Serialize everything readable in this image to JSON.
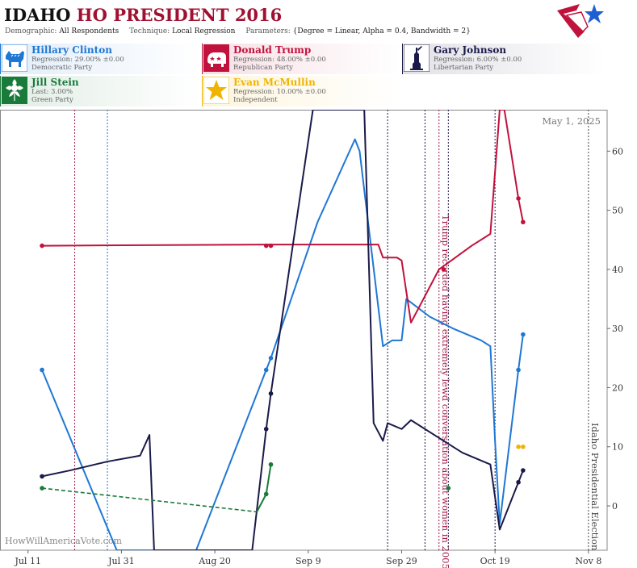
{
  "header": {
    "state": "IDAHO",
    "title_rest": "HO PRESIDENT 2016",
    "demographic_label": "Demographic:",
    "demographic_value": "All Respondents",
    "technique_label": "Technique:",
    "technique_value": "Local Regression",
    "parameters_label": "Parameters:",
    "parameters_value": "{Degree = Linear, Alpha = 0.4, Bandwidth = 2}"
  },
  "candidates": [
    {
      "name": "Hillary Clinton",
      "line2": "Regression: 29.00% ±0.00",
      "line3": "Democratic Party",
      "color": "#1f77d4",
      "icon": "donkey-icon"
    },
    {
      "name": "Donald Trump",
      "line2": "Regression: 48.00% ±0.00",
      "line3": "Republican Party",
      "color": "#c0123c",
      "icon": "elephant-icon"
    },
    {
      "name": "Gary Johnson",
      "line2": "Regression: 6.00% ±0.00",
      "line3": "Libertarian Party",
      "color": "#1a1a4a",
      "icon": "statue-of-liberty-icon"
    },
    {
      "name": "Jill Stein",
      "line2": "Last: 3.00%",
      "line3": "Green Party",
      "color": "#1a7a3a",
      "icon": "green-flower-icon"
    },
    {
      "name": "Evan McMullin",
      "line2": "Regression: 10.00% ±0.00",
      "line3": "Independent",
      "color": "#f0b400",
      "icon": "star-icon"
    }
  ],
  "chart_data": {
    "type": "line",
    "date_label": "May 1, 2025",
    "watermark": "HowWillAmericaVote.com",
    "x_ticks": [
      "Jul 11",
      "Jul 31",
      "Aug 20",
      "Sep 9",
      "Sep 29",
      "Oct 19",
      "Nov 8"
    ],
    "x_tick_dates": [
      "2016-07-11",
      "2016-07-31",
      "2016-08-20",
      "2016-09-09",
      "2016-09-29",
      "2016-10-19",
      "2016-11-08"
    ],
    "xlim": [
      "2016-07-05",
      "2016-11-12"
    ],
    "y_ticks": [
      0,
      10,
      20,
      30,
      40,
      50,
      60
    ],
    "ylim": [
      -7.5,
      67
    ],
    "annotations": [
      {
        "date": "2016-10-07",
        "text": "Trump recorded having extremely lewd conversation about women in 2005",
        "color": "#a01848"
      },
      {
        "date": "2016-11-08",
        "text": "Idaho Presidential Election",
        "color": "#444444"
      }
    ],
    "event_lines": [
      {
        "date": "2016-07-21",
        "color": "#a01848"
      },
      {
        "date": "2016-07-28",
        "color": "#1f77d4"
      },
      {
        "date": "2016-09-26",
        "color": "#1a1a4a"
      },
      {
        "date": "2016-10-04",
        "color": "#1a1a4a"
      },
      {
        "date": "2016-10-07",
        "color": "#a01848"
      },
      {
        "date": "2016-10-09",
        "color": "#1a1a4a"
      },
      {
        "date": "2016-10-19",
        "color": "#1a1a4a"
      },
      {
        "date": "2016-11-08",
        "color": "#444444"
      }
    ],
    "series": [
      {
        "name": "Hillary Clinton",
        "color": "#1f77d4",
        "line": [
          [
            "2016-07-14",
            23
          ],
          [
            "2016-07-30",
            -7.5
          ],
          [
            "2016-08-16",
            -7.5
          ],
          [
            "2016-08-31",
            23
          ],
          [
            "2016-09-01",
            25
          ],
          [
            "2016-09-11",
            48
          ],
          [
            "2016-09-19",
            62
          ],
          [
            "2016-09-20",
            60
          ],
          [
            "2016-09-25",
            27
          ],
          [
            "2016-09-27",
            28
          ],
          [
            "2016-09-29",
            28
          ],
          [
            "2016-09-30",
            35
          ],
          [
            "2016-10-05",
            32
          ],
          [
            "2016-10-10",
            30
          ],
          [
            "2016-10-16",
            28
          ],
          [
            "2016-10-18",
            27
          ],
          [
            "2016-10-19",
            11
          ],
          [
            "2016-10-20",
            -3
          ],
          [
            "2016-10-24",
            23
          ],
          [
            "2016-10-25",
            29
          ]
        ],
        "points": [
          [
            "2016-07-14",
            23
          ],
          [
            "2016-08-31",
            23
          ],
          [
            "2016-09-01",
            25
          ],
          [
            "2016-10-24",
            23
          ],
          [
            "2016-10-25",
            29
          ]
        ]
      },
      {
        "name": "Donald Trump",
        "color": "#c0123c",
        "line": [
          [
            "2016-07-14",
            44
          ],
          [
            "2016-09-01",
            44.2
          ],
          [
            "2016-09-24",
            44.2
          ],
          [
            "2016-09-25",
            42
          ],
          [
            "2016-09-28",
            42
          ],
          [
            "2016-09-29",
            41.5
          ],
          [
            "2016-10-01",
            31
          ],
          [
            "2016-10-07",
            40
          ],
          [
            "2016-10-14",
            44
          ],
          [
            "2016-10-18",
            46
          ],
          [
            "2016-10-20",
            67
          ],
          [
            "2016-10-21",
            67
          ],
          [
            "2016-10-24",
            52
          ],
          [
            "2016-10-25",
            48
          ]
        ],
        "points": [
          [
            "2016-07-14",
            44
          ],
          [
            "2016-08-31",
            44
          ],
          [
            "2016-09-01",
            44
          ],
          [
            "2016-10-08",
            40
          ],
          [
            "2016-10-24",
            52
          ],
          [
            "2016-10-25",
            48
          ]
        ]
      },
      {
        "name": "Gary Johnson",
        "color": "#1a1a4a",
        "line": [
          [
            "2016-07-14",
            5
          ],
          [
            "2016-07-20",
            6
          ],
          [
            "2016-07-28",
            7.5
          ],
          [
            "2016-08-04",
            8.5
          ],
          [
            "2016-08-06",
            12
          ],
          [
            "2016-08-07",
            -7.5
          ],
          [
            "2016-08-28",
            -7.5
          ],
          [
            "2016-08-31",
            13
          ],
          [
            "2016-09-01",
            19
          ],
          [
            "2016-09-10",
            67
          ],
          [
            "2016-09-21",
            67
          ],
          [
            "2016-09-23",
            14
          ],
          [
            "2016-09-25",
            11
          ],
          [
            "2016-09-26",
            14
          ],
          [
            "2016-09-29",
            13
          ],
          [
            "2016-10-01",
            14.5
          ],
          [
            "2016-10-08",
            11
          ],
          [
            "2016-10-12",
            9
          ],
          [
            "2016-10-18",
            7
          ],
          [
            "2016-10-20",
            -4
          ],
          [
            "2016-10-24",
            4
          ],
          [
            "2016-10-25",
            6
          ]
        ],
        "points": [
          [
            "2016-07-14",
            5
          ],
          [
            "2016-08-31",
            13
          ],
          [
            "2016-09-01",
            19
          ],
          [
            "2016-10-24",
            4
          ],
          [
            "2016-10-25",
            6
          ]
        ]
      },
      {
        "name": "Jill Stein",
        "color": "#1a7a3a",
        "dashed_to": "2016-08-29",
        "line": [
          [
            "2016-07-14",
            3
          ],
          [
            "2016-08-29",
            -1
          ],
          [
            "2016-08-31",
            2
          ],
          [
            "2016-09-01",
            7
          ]
        ],
        "points": [
          [
            "2016-07-14",
            3
          ],
          [
            "2016-08-31",
            2
          ],
          [
            "2016-09-01",
            7
          ],
          [
            "2016-10-09",
            3
          ]
        ]
      },
      {
        "name": "Evan McMullin",
        "color": "#f0b400",
        "line": [],
        "points": [
          [
            "2016-10-24",
            10
          ],
          [
            "2016-10-25",
            10
          ]
        ]
      }
    ]
  }
}
